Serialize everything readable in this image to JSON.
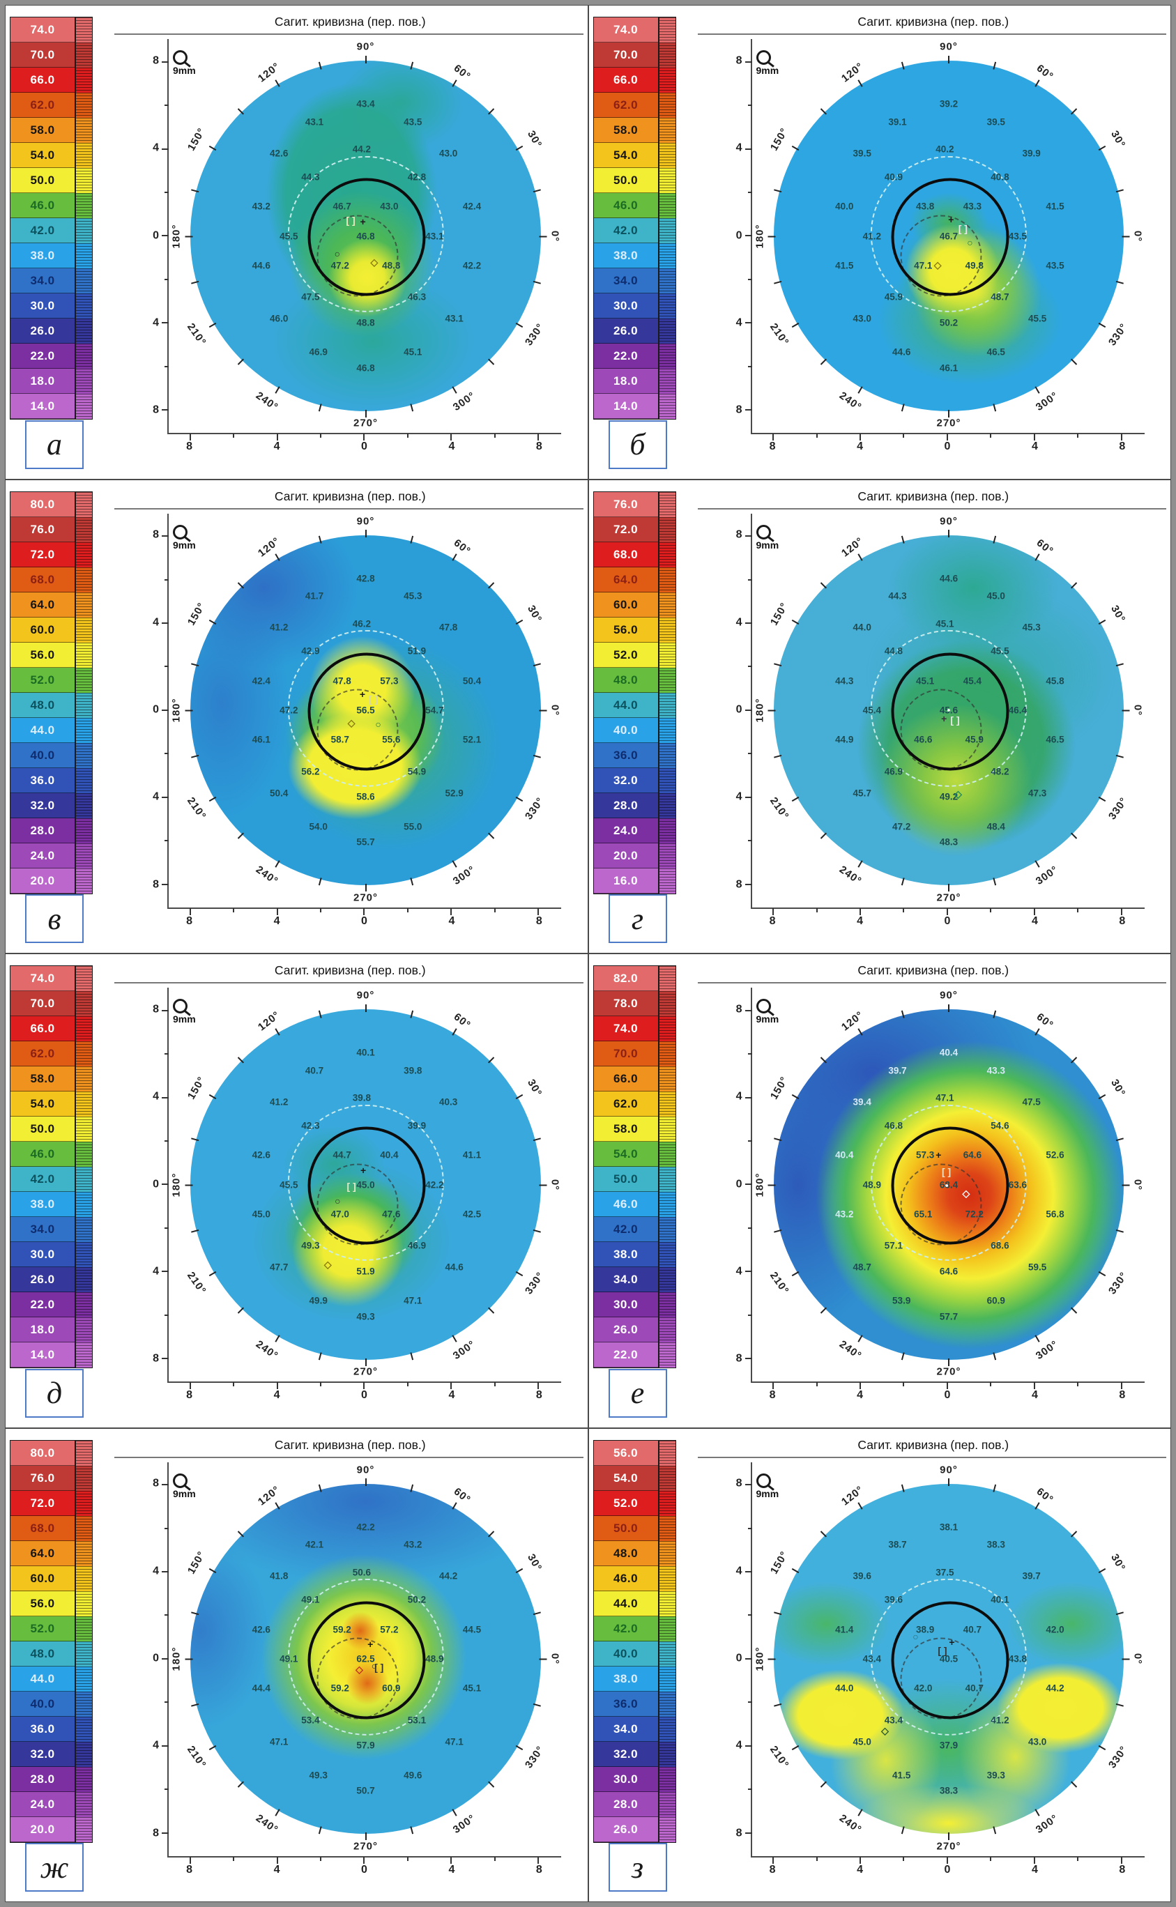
{
  "chart_data": {
    "type": "heatmap",
    "subtype": "corneal-topography-sagittal-curvature-polar-maps",
    "title": "Сагит. кривизна (пер. пов.)",
    "zoom_label": "9mm",
    "angle_labels": [
      "90°",
      "120°",
      "60°",
      "150°",
      "30°",
      "180°",
      "0°",
      "210°",
      "240°",
      "270°",
      "300°",
      "330°"
    ],
    "axis_tick_labels": [
      "8",
      "4",
      "0",
      "4",
      "8"
    ],
    "legend_position": "left",
    "grid": "polar",
    "palette": [
      "#e36a6a",
      "#bf3a34",
      "#de1e1e",
      "#e05c15",
      "#f0921e",
      "#f3c51c",
      "#f2ee33",
      "#66bd3e",
      "#3fb4c8",
      "#2aa2e8",
      "#2f72c8",
      "#3153b8",
      "#35389a",
      "#7b2fa0",
      "#9d4ab8",
      "#bb67cc"
    ],
    "scale_text_colors": [
      "#ffffff",
      "#ffffff",
      "#ffffff",
      "#8c2014",
      "#151515",
      "#151515",
      "#151515",
      "#1c6b24",
      "#0c515e",
      "#ddeefc",
      "#0e2c6e",
      "#ffffff",
      "#ffffff",
      "#ffffff",
      "#ffffff",
      "#ffffff"
    ],
    "value_grid": [
      [
        50,
        16.5
      ],
      [
        37,
        21
      ],
      [
        62,
        21
      ],
      [
        28,
        29
      ],
      [
        49,
        28
      ],
      [
        71,
        29
      ],
      [
        36,
        35
      ],
      [
        63,
        35
      ],
      [
        23.5,
        42.5
      ],
      [
        44,
        42.5
      ],
      [
        56,
        42.5
      ],
      [
        77,
        42.5
      ],
      [
        30.5,
        50
      ],
      [
        50,
        50
      ],
      [
        67.5,
        50
      ],
      [
        23.5,
        57.5
      ],
      [
        43.5,
        57.5
      ],
      [
        56.5,
        57.5
      ],
      [
        77,
        57.5
      ],
      [
        36,
        65.5
      ],
      [
        63,
        65.5
      ],
      [
        28,
        71
      ],
      [
        50,
        72
      ],
      [
        72.5,
        71
      ],
      [
        38,
        79.5
      ],
      [
        62,
        79.5
      ],
      [
        50,
        83.5
      ]
    ],
    "panels": [
      {
        "label": "а",
        "scale": [
          "74.0",
          "70.0",
          "66.0",
          "62.0",
          "58.0",
          "54.0",
          "50.0",
          "46.0",
          "42.0",
          "38.0",
          "34.0",
          "30.0",
          "26.0",
          "22.0",
          "18.0",
          "14.0"
        ],
        "values": [
          "43.4",
          "43.1",
          "43.5",
          "42.6",
          "44.2",
          "43.0",
          "44.3",
          "42.8",
          "43.2",
          "46.7",
          "43.0",
          "42.4",
          "45.5",
          "46.8",
          "43.1",
          "44.6",
          "47.2",
          "48.3",
          "42.2",
          "47.5",
          "46.3",
          "46.0",
          "48.8",
          "43.1",
          "46.9",
          "45.1",
          "46.8"
        ],
        "markers": [
          {
            "g": "[ ]",
            "x": 46.2,
            "y": 46.0,
            "c": "#efe9c0"
          },
          {
            "g": "+",
            "x": 49.3,
            "y": 46.3,
            "c": "#1a1a1a"
          },
          {
            "g": "○",
            "x": 42.8,
            "y": 54.6,
            "c": "#2a2a2a"
          },
          {
            "g": "◇",
            "x": 52.2,
            "y": 56.6,
            "c": "#8a7a10"
          }
        ]
      },
      {
        "label": "б",
        "scale": [
          "74.0",
          "70.0",
          "66.0",
          "62.0",
          "58.0",
          "54.0",
          "50.0",
          "46.0",
          "42.0",
          "38.0",
          "34.0",
          "30.0",
          "26.0",
          "22.0",
          "18.0",
          "14.0"
        ],
        "values": [
          "39.2",
          "39.1",
          "39.5",
          "39.5",
          "40.2",
          "39.9",
          "40.9",
          "40.8",
          "40.0",
          "43.8",
          "43.3",
          "41.5",
          "41.2",
          "46.7",
          "43.5",
          "41.5",
          "47.1",
          "49.8",
          "43.5",
          "45.9",
          "48.7",
          "43.0",
          "50.2",
          "45.5",
          "44.6",
          "46.5",
          "46.1"
        ],
        "markers": [
          {
            "g": "+",
            "x": 50.6,
            "y": 45.9,
            "c": "#1a1a1a"
          },
          {
            "g": "[ ]",
            "x": 53.6,
            "y": 48.2,
            "c": "#e8e8e8"
          },
          {
            "g": "○",
            "x": 55.4,
            "y": 51.6,
            "c": "#1f6f3f"
          },
          {
            "g": "◇",
            "x": 47.2,
            "y": 57.4,
            "c": "#8a7a10"
          }
        ]
      },
      {
        "label": "в",
        "scale": [
          "80.0",
          "76.0",
          "72.0",
          "68.0",
          "64.0",
          "60.0",
          "56.0",
          "52.0",
          "48.0",
          "44.0",
          "40.0",
          "36.0",
          "32.0",
          "28.0",
          "24.0",
          "20.0"
        ],
        "values": [
          "42.8",
          "41.7",
          "45.3",
          "41.2",
          "46.2",
          "47.8",
          "42.9",
          "51.9",
          "42.4",
          "47.8",
          "57.3",
          "50.4",
          "47.2",
          "56.5",
          "54.7",
          "46.1",
          "58.7",
          "55.6",
          "52.1",
          "56.2",
          "54.9",
          "50.4",
          "58.6",
          "52.9",
          "54.0",
          "55.0",
          "55.7"
        ],
        "markers": [
          {
            "g": "+",
            "x": 49.2,
            "y": 45.9,
            "c": "#1a1a1a"
          },
          {
            "g": "[ ]",
            "x": 52.0,
            "y": 47.2,
            "c": "#d8d8a8"
          },
          {
            "g": "◇",
            "x": 46.4,
            "y": 53.2,
            "c": "#8a7a10"
          },
          {
            "g": "○",
            "x": 53.2,
            "y": 53.6,
            "c": "#1f6f3f"
          }
        ]
      },
      {
        "label": "г",
        "scale": [
          "76.0",
          "72.0",
          "68.0",
          "64.0",
          "60.0",
          "56.0",
          "52.0",
          "48.0",
          "44.0",
          "40.0",
          "36.0",
          "32.0",
          "28.0",
          "24.0",
          "20.0",
          "16.0"
        ],
        "values": [
          "44.6",
          "44.3",
          "45.0",
          "44.0",
          "45.1",
          "45.3",
          "44.8",
          "45.5",
          "44.3",
          "45.1",
          "45.4",
          "45.8",
          "45.4",
          "45.6",
          "46.4",
          "44.9",
          "46.6",
          "45.9",
          "46.5",
          "46.9",
          "48.2",
          "45.7",
          "49.2",
          "47.3",
          "47.2",
          "48.4",
          "48.3"
        ],
        "markers": [
          {
            "g": "●",
            "x": 50.0,
            "y": 50.0,
            "c": "#f8f8f8",
            "s": 9
          },
          {
            "g": "+",
            "x": 48.8,
            "y": 52.2,
            "c": "#333333"
          },
          {
            "g": "[ ]",
            "x": 51.6,
            "y": 52.4,
            "c": "#e8e8e8"
          },
          {
            "g": "◇",
            "x": 52.4,
            "y": 71.2,
            "c": "#1f8a5a"
          }
        ]
      },
      {
        "label": "д",
        "scale": [
          "74.0",
          "70.0",
          "66.0",
          "62.0",
          "58.0",
          "54.0",
          "50.0",
          "46.0",
          "42.0",
          "38.0",
          "34.0",
          "30.0",
          "26.0",
          "22.0",
          "18.0",
          "14.0"
        ],
        "values": [
          "40.1",
          "40.7",
          "39.8",
          "41.2",
          "39.8",
          "40.3",
          "42.3",
          "39.9",
          "42.6",
          "44.7",
          "40.4",
          "41.1",
          "45.5",
          "45.0",
          "42.2",
          "45.0",
          "47.0",
          "47.6",
          "42.5",
          "49.3",
          "46.9",
          "47.7",
          "51.9",
          "44.6",
          "49.9",
          "47.1",
          "49.3"
        ],
        "markers": [
          {
            "g": "+",
            "x": 49.4,
            "y": 46.4,
            "c": "#1a1a1a"
          },
          {
            "g": "[ ]",
            "x": 46.4,
            "y": 50.4,
            "c": "#e8e8c8"
          },
          {
            "g": "○",
            "x": 42.9,
            "y": 54.2,
            "c": "#2a2a2a"
          },
          {
            "g": "◇",
            "x": 40.4,
            "y": 70.2,
            "c": "#8a7a10"
          }
        ]
      },
      {
        "label": "е",
        "scale": [
          "82.0",
          "78.0",
          "74.0",
          "70.0",
          "66.0",
          "62.0",
          "58.0",
          "54.0",
          "50.0",
          "46.0",
          "42.0",
          "38.0",
          "34.0",
          "30.0",
          "26.0",
          "22.0"
        ],
        "values": [
          "40.4",
          "39.7",
          "43.3",
          "39.4",
          "47.1",
          "47.5",
          "46.8",
          "54.6",
          "40.4",
          "57.3",
          "64.6",
          "52.6",
          "48.9",
          "68.4",
          "63.6",
          "43.2",
          "65.1",
          "72.2",
          "56.8",
          "57.1",
          "68.6",
          "48.7",
          "64.6",
          "59.5",
          "53.9",
          "60.9",
          "57.7"
        ],
        "light": [
          0,
          1,
          2,
          3,
          8,
          15
        ],
        "markers": [
          {
            "g": "+",
            "x": 47.4,
            "y": 42.4,
            "c": "#1a1a1a"
          },
          {
            "g": "[ ]",
            "x": 49.4,
            "y": 46.8,
            "c": "#f0dfc0"
          },
          {
            "g": "●",
            "x": 49.5,
            "y": 50.2,
            "c": "#ffffff",
            "s": 9
          },
          {
            "g": "◇",
            "x": 54.4,
            "y": 52.2,
            "c": "#ffffff"
          }
        ]
      },
      {
        "label": "ж",
        "scale": [
          "80.0",
          "76.0",
          "72.0",
          "68.0",
          "64.0",
          "60.0",
          "56.0",
          "52.0",
          "48.0",
          "44.0",
          "40.0",
          "36.0",
          "32.0",
          "28.0",
          "24.0",
          "20.0"
        ],
        "values": [
          "42.2",
          "42.1",
          "43.2",
          "41.8",
          "50.6",
          "44.2",
          "49.1",
          "50.2",
          "42.6",
          "59.2",
          "57.2",
          "44.5",
          "49.1",
          "62.5",
          "48.9",
          "44.4",
          "59.2",
          "60.9",
          "45.1",
          "53.4",
          "53.1",
          "47.1",
          "57.9",
          "47.1",
          "49.3",
          "49.6",
          "50.7"
        ],
        "markers": [
          {
            "g": "+",
            "x": 51.2,
            "y": 46.2,
            "c": "#1a1a1a"
          },
          {
            "g": "○",
            "x": 52.2,
            "y": 51.8,
            "c": "#222222"
          },
          {
            "g": "◇",
            "x": 48.4,
            "y": 52.6,
            "c": "#c03020"
          },
          {
            "g": "[ ]",
            "x": 53.4,
            "y": 52.2,
            "c": "#333333"
          }
        ]
      },
      {
        "label": "з",
        "scale": [
          "56.0",
          "54.0",
          "52.0",
          "50.0",
          "48.0",
          "46.0",
          "44.0",
          "42.0",
          "40.0",
          "38.0",
          "36.0",
          "34.0",
          "32.0",
          "30.0",
          "28.0",
          "26.0"
        ],
        "values": [
          "38.1",
          "38.7",
          "38.3",
          "39.6",
          "37.5",
          "39.7",
          "39.6",
          "40.1",
          "41.4",
          "38.9",
          "40.7",
          "42.0",
          "43.4",
          "40.5",
          "43.8",
          "44.0",
          "42.0",
          "40.7",
          "44.2",
          "43.4",
          "41.2",
          "45.0",
          "37.9",
          "43.0",
          "41.5",
          "39.3",
          "38.3"
        ],
        "markers": [
          {
            "g": "○",
            "x": 41.6,
            "y": 44.4,
            "c": "#2a6a7a"
          },
          {
            "g": "+",
            "x": 50.8,
            "y": 45.8,
            "c": "#1a1a1a"
          },
          {
            "g": "[ ]",
            "x": 48.4,
            "y": 47.8,
            "c": "#333333"
          },
          {
            "g": "◇",
            "x": 33.8,
            "y": 68.2,
            "c": "#2a5a2a"
          }
        ]
      }
    ]
  }
}
